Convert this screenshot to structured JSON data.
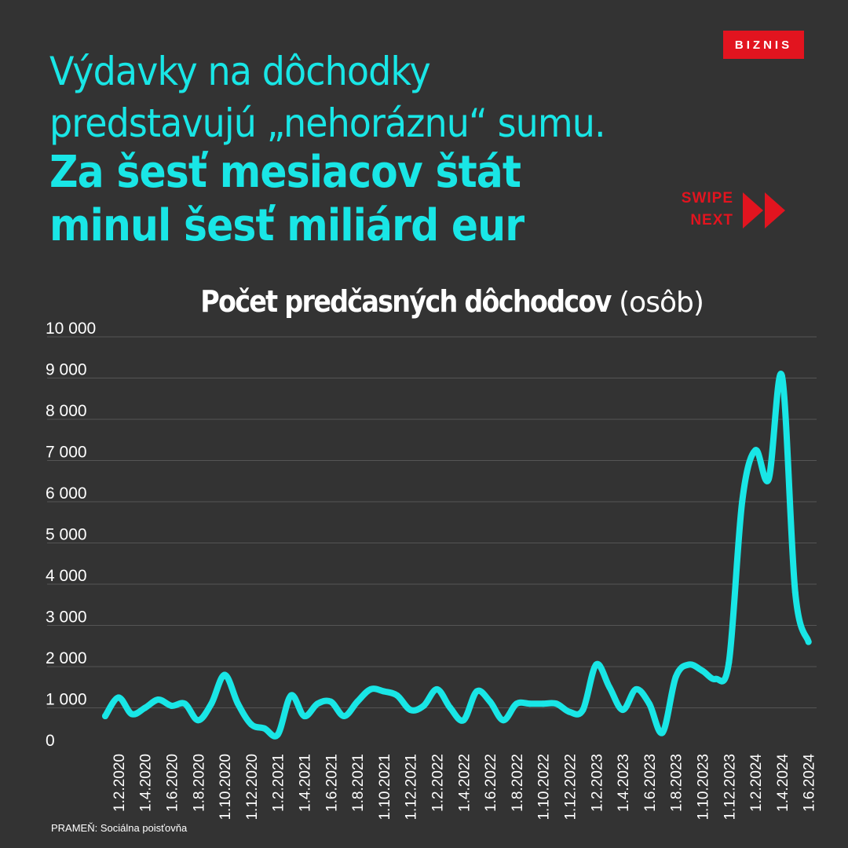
{
  "header": {
    "headline_line1": "Výdavky na dôchodky",
    "headline_line2": "predstavujú „nehoráznu“ sumu.",
    "headline_bold_line1": "Za šesť mesiacov štát",
    "headline_bold_line2": "minul šesť miliárd eur",
    "brand": "BIZNIS",
    "swipe_line1": "SWIPE",
    "swipe_line2": "NEXT"
  },
  "colors": {
    "background": "#333333",
    "accent": "#19e6e6",
    "brand_red": "#e2141f"
  },
  "icons": {
    "swipe": "double-chevron-right-icon"
  },
  "source": "PRAMEŇ: Sociálna poisťovňa",
  "chart_data": {
    "type": "line",
    "title": "Počet predčasných dôchodcov",
    "unit_label": "(osôb)",
    "ylim": [
      0,
      10000
    ],
    "yticks": [
      0,
      1000,
      2000,
      3000,
      4000,
      5000,
      6000,
      7000,
      8000,
      9000,
      10000
    ],
    "ytick_labels": [
      "0",
      "1 000",
      "2 000",
      "3 000",
      "4 000",
      "5 000",
      "6 000",
      "7 000",
      "8 000",
      "9 000",
      "10 000"
    ],
    "xtick_labels": [
      "1.2.2020",
      "1.4.2020",
      "1.6.2020",
      "1.8.2020",
      "1.10.2020",
      "1.12.2020",
      "1.2.2021",
      "1.4.2021",
      "1.6.2021",
      "1.8.2021",
      "1.10.2021",
      "1.12.2021",
      "1.2.2022",
      "1.4.2022",
      "1.6.2022",
      "1.8.2022",
      "1.10.2022",
      "1.12.2022",
      "1.2.2023",
      "1.4.2023",
      "1.6.2023",
      "1.8.2023",
      "1.10.2023",
      "1.12.2023",
      "1.2.2024",
      "1.4.2024",
      "1.6.2024"
    ],
    "x": [
      "1.1.2020",
      "1.2.2020",
      "1.3.2020",
      "1.4.2020",
      "1.5.2020",
      "1.6.2020",
      "1.7.2020",
      "1.8.2020",
      "1.9.2020",
      "1.10.2020",
      "1.11.2020",
      "1.12.2020",
      "1.1.2021",
      "1.2.2021",
      "1.3.2021",
      "1.4.2021",
      "1.5.2021",
      "1.6.2021",
      "1.7.2021",
      "1.8.2021",
      "1.9.2021",
      "1.10.2021",
      "1.11.2021",
      "1.12.2021",
      "1.1.2022",
      "1.2.2022",
      "1.3.2022",
      "1.4.2022",
      "1.5.2022",
      "1.6.2022",
      "1.7.2022",
      "1.8.2022",
      "1.9.2022",
      "1.10.2022",
      "1.11.2022",
      "1.12.2022",
      "1.1.2023",
      "1.2.2023",
      "1.3.2023",
      "1.4.2023",
      "1.5.2023",
      "1.6.2023",
      "1.7.2023",
      "1.8.2023",
      "1.9.2023",
      "1.10.2023",
      "1.11.2023",
      "1.12.2023",
      "1.1.2024",
      "1.2.2024",
      "1.3.2024",
      "1.4.2024",
      "1.5.2024",
      "1.6.2024"
    ],
    "values": [
      800,
      1250,
      850,
      1000,
      1200,
      1050,
      1100,
      700,
      1100,
      1800,
      1100,
      600,
      500,
      350,
      1300,
      800,
      1100,
      1150,
      800,
      1150,
      1450,
      1400,
      1300,
      950,
      1050,
      1450,
      1000,
      700,
      1400,
      1150,
      700,
      1100,
      1100,
      1100,
      1100,
      900,
      950,
      2050,
      1500,
      950,
      1450,
      1100,
      400,
      1750,
      2050,
      1900,
      1700,
      2100,
      6000,
      7250,
      6550,
      9050,
      3800,
      2600
    ],
    "series_color": "#19e6e6",
    "grid": true,
    "legend": "none"
  }
}
